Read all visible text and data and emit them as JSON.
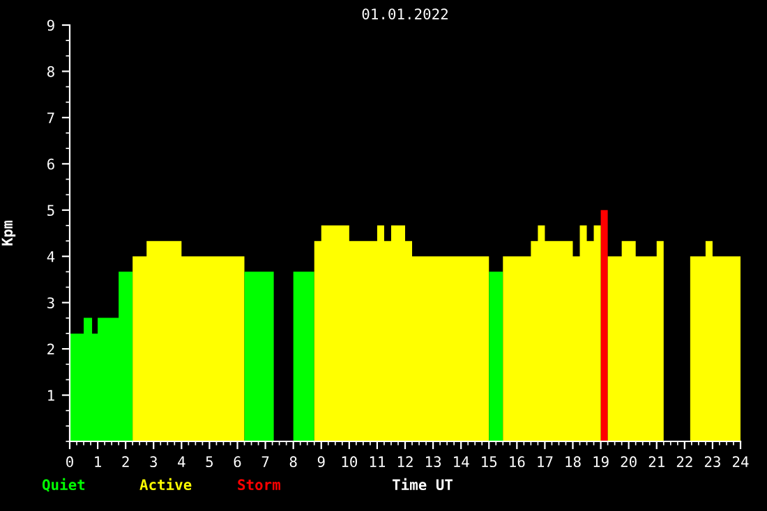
{
  "chart_data": {
    "type": "area",
    "title": "01.01.2022",
    "xlabel": "Time UT",
    "ylabel": "Kpm",
    "series": [
      {
        "name": "Quiet",
        "color": "#00ff00",
        "x": [
          0,
          0.5,
          0.8,
          1.0,
          1.75,
          2.25
        ],
        "values": [
          2.33,
          2.67,
          2.33,
          2.67,
          3.67,
          3.67
        ]
      },
      {
        "name": "Active",
        "color": "#ffff00",
        "x": [
          2.25,
          2.75,
          4.0,
          6.25
        ],
        "values": [
          4.0,
          4.33,
          4.0,
          4.0
        ]
      },
      {
        "name": "Storm",
        "color": "#ff0000",
        "x": [
          19.0,
          19.25
        ],
        "values": [
          5.0,
          5.0
        ]
      },
      {
        "color": "#00ff00",
        "x": [
          6.25,
          7.3
        ],
        "values": [
          3.67,
          3.67
        ]
      },
      {
        "color": "#00ff00",
        "x": [
          8.0,
          8.75
        ],
        "values": [
          3.67,
          3.67
        ]
      },
      {
        "color": "#ffff00",
        "x": [
          8.75,
          9.0,
          10.0,
          11.0,
          11.25,
          11.5,
          12.0,
          12.25,
          15.0
        ],
        "values": [
          4.33,
          4.67,
          4.33,
          4.67,
          4.33,
          4.67,
          4.33,
          4.0,
          4.0
        ]
      },
      {
        "color": "#00ff00",
        "x": [
          15.0,
          15.5
        ],
        "values": [
          3.67,
          3.67
        ]
      },
      {
        "color": "#ffff00",
        "x": [
          15.5,
          16.5,
          16.75,
          17.0,
          18.0,
          18.25,
          18.5,
          18.75,
          19.0
        ],
        "values": [
          4.0,
          4.33,
          4.67,
          4.33,
          4.0,
          4.67,
          4.33,
          4.67,
          4.67
        ]
      },
      {
        "color": "#ffff00",
        "x": [
          19.25,
          19.75,
          20.25,
          21.0,
          21.25
        ],
        "values": [
          4.0,
          4.33,
          4.0,
          4.33,
          4.33
        ]
      },
      {
        "color": "#ffff00",
        "x": [
          22.2,
          22.75,
          23.0,
          24.0
        ],
        "values": [
          4.0,
          4.33,
          4.0,
          4.0
        ]
      }
    ],
    "xlim": [
      0,
      24
    ],
    "xticks": [
      0,
      1,
      2,
      3,
      4,
      5,
      6,
      7,
      8,
      9,
      10,
      11,
      12,
      13,
      14,
      15,
      16,
      17,
      18,
      19,
      20,
      21,
      22,
      23,
      24
    ],
    "ylim": [
      0,
      9
    ],
    "yticks": [
      1,
      2,
      3,
      4,
      5,
      6,
      7,
      8,
      9
    ],
    "legend": "bottom",
    "grid": false
  }
}
